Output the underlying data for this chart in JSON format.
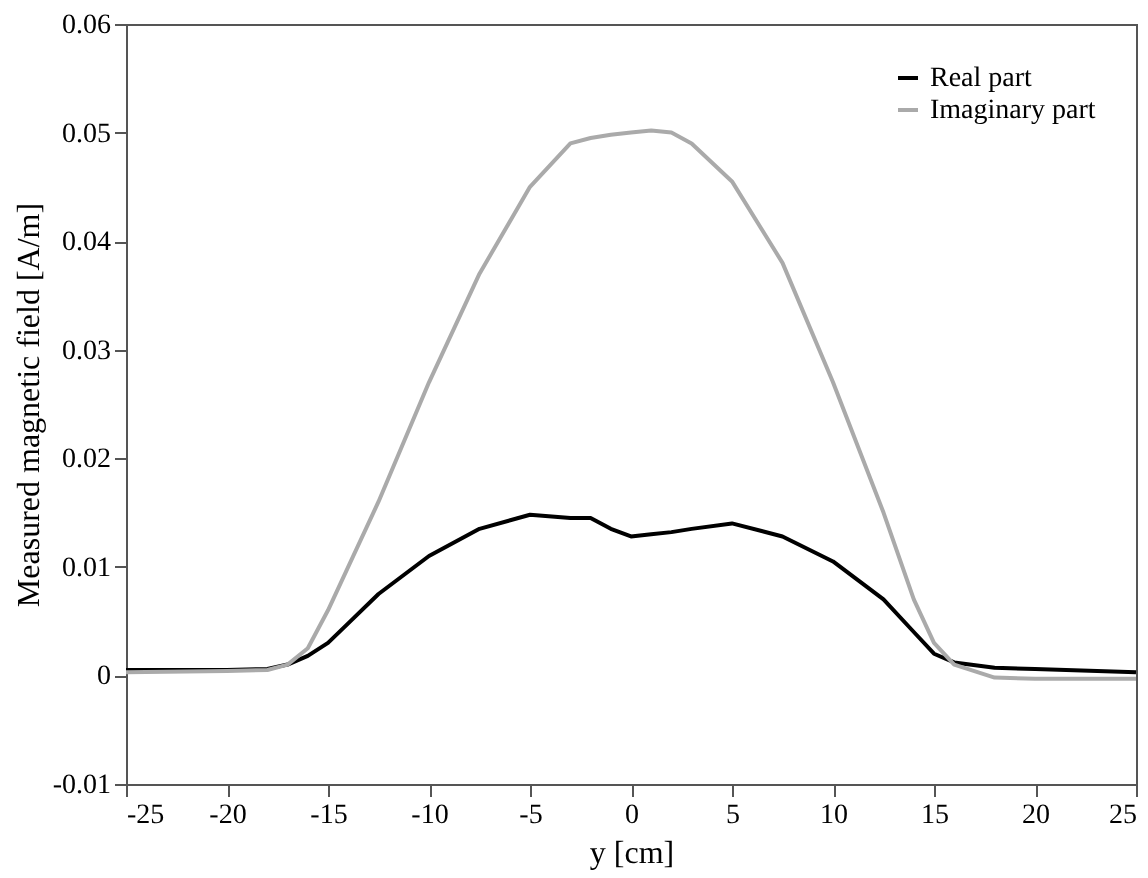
{
  "chart_data": {
    "type": "line",
    "xlabel": "y [cm]",
    "ylabel": "Measured magnetic field [A/m]",
    "x": [
      -25,
      -20,
      -18,
      -17,
      -16,
      -15,
      -14,
      -12.5,
      -10,
      -7.5,
      -5,
      -3,
      -2,
      -1,
      0,
      1,
      2,
      3,
      5,
      7.5,
      10,
      12.5,
      14,
      15,
      16,
      18,
      20,
      25
    ],
    "series": [
      {
        "name": "Real part",
        "color": "#000000",
        "values": [
          0.0005,
          0.0005,
          0.0006,
          0.001,
          0.0018,
          0.003,
          0.0048,
          0.0075,
          0.011,
          0.0135,
          0.0148,
          0.0145,
          0.0145,
          0.0135,
          0.0128,
          0.013,
          0.0132,
          0.0135,
          0.014,
          0.0128,
          0.0105,
          0.007,
          0.004,
          0.002,
          0.0012,
          0.0007,
          0.0006,
          0.0003
        ]
      },
      {
        "name": "Imaginary part",
        "color": "#aaaaaa",
        "values": [
          0.0003,
          0.0004,
          0.0005,
          0.001,
          0.0025,
          0.006,
          0.01,
          0.016,
          0.027,
          0.037,
          0.045,
          0.049,
          0.0495,
          0.0498,
          0.05,
          0.0502,
          0.05,
          0.049,
          0.0455,
          0.038,
          0.027,
          0.015,
          0.007,
          0.003,
          0.001,
          -0.0002,
          -0.0003,
          -0.0003
        ]
      }
    ],
    "xlim": [
      -25,
      25
    ],
    "xticks": [
      -25,
      -20,
      -15,
      -10,
      -5,
      0,
      5,
      10,
      15,
      20,
      25
    ],
    "ylim": [
      -0.01,
      0.06
    ],
    "yticks": [
      -0.01,
      0,
      0.01,
      0.02,
      0.03,
      0.04,
      0.05,
      0.06
    ],
    "grid": false,
    "legend": "top right",
    "line_style": "solid",
    "marker": "none"
  }
}
